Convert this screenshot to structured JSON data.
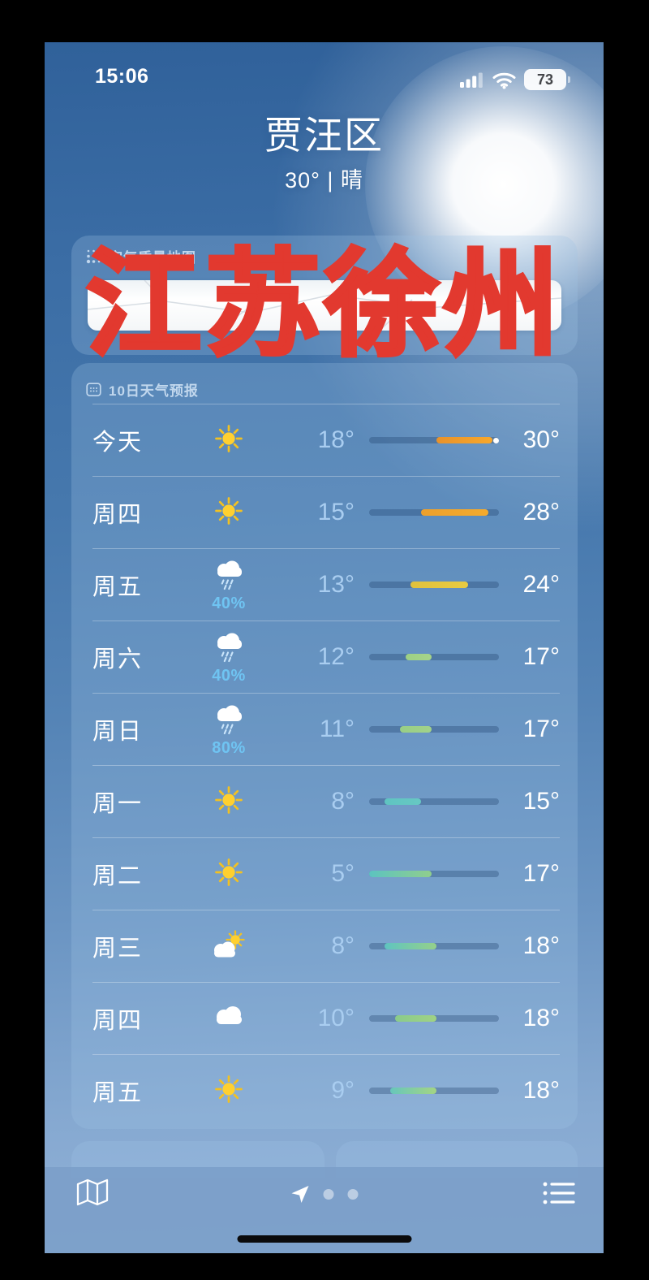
{
  "status_bar": {
    "time": "15:06",
    "battery_percent": "73"
  },
  "header": {
    "location": "贾汪区",
    "summary": "30° | 晴"
  },
  "watermark": {
    "text": "江苏徐州",
    "color": "#e2392f"
  },
  "aqi_card": {
    "title": "空气质量地图"
  },
  "forecast_card": {
    "title": "10日天气预报",
    "temp_range": {
      "min": 5,
      "max": 30
    },
    "days": [
      {
        "day": "今天",
        "icon": "sun",
        "precip": null,
        "low": 18,
        "high": 30,
        "low_label": "18°",
        "high_label": "30°",
        "bar_colors": [
          "#e8922b",
          "#f8a82b"
        ],
        "current_dot": true
      },
      {
        "day": "周四",
        "icon": "sun",
        "precip": null,
        "low": 15,
        "high": 28,
        "low_label": "15°",
        "high_label": "28°",
        "bar_colors": [
          "#eda02c",
          "#f4ab2e"
        ],
        "current_dot": false
      },
      {
        "day": "周五",
        "icon": "rain",
        "precip": "40%",
        "low": 13,
        "high": 24,
        "low_label": "13°",
        "high_label": "24°",
        "bar_colors": [
          "#e0c13d",
          "#e9cb41"
        ],
        "current_dot": false
      },
      {
        "day": "周六",
        "icon": "rain",
        "precip": "40%",
        "low": 12,
        "high": 17,
        "low_label": "12°",
        "high_label": "17°",
        "bar_colors": [
          "#9dd085",
          "#a6d48a"
        ],
        "current_dot": false
      },
      {
        "day": "周日",
        "icon": "rain",
        "precip": "80%",
        "low": 11,
        "high": 17,
        "low_label": "11°",
        "high_label": "17°",
        "bar_colors": [
          "#98ce85",
          "#a2d28a"
        ],
        "current_dot": false
      },
      {
        "day": "周一",
        "icon": "sun",
        "precip": null,
        "low": 8,
        "high": 15,
        "low_label": "8°",
        "high_label": "15°",
        "bar_colors": [
          "#5fc4c1",
          "#67c8c3"
        ],
        "current_dot": false
      },
      {
        "day": "周二",
        "icon": "sun",
        "precip": null,
        "low": 5,
        "high": 17,
        "low_label": "5°",
        "high_label": "17°",
        "bar_colors": [
          "#5cc3c0",
          "#90ce8d"
        ],
        "current_dot": false
      },
      {
        "day": "周三",
        "icon": "partly-cloudy",
        "precip": null,
        "low": 8,
        "high": 18,
        "low_label": "8°",
        "high_label": "18°",
        "bar_colors": [
          "#5fc4c0",
          "#95d08a"
        ],
        "current_dot": false
      },
      {
        "day": "周四",
        "icon": "cloud",
        "precip": null,
        "low": 10,
        "high": 18,
        "low_label": "10°",
        "high_label": "18°",
        "bar_colors": [
          "#8acb8b",
          "#a0d284"
        ],
        "current_dot": false
      },
      {
        "day": "周五",
        "icon": "sun",
        "precip": null,
        "low": 9,
        "high": 18,
        "low_label": "9°",
        "high_label": "18°",
        "bar_colors": [
          "#67c6bb",
          "#a4d583"
        ],
        "current_dot": false
      }
    ]
  },
  "toolbar": {
    "page_dot_count": 2
  },
  "colors": {
    "precip_text": "#6fc4f2",
    "sun": "#ffd02f",
    "watermark_red": "#e2392f",
    "bar_track": "rgba(22,56,100,0.30)"
  }
}
